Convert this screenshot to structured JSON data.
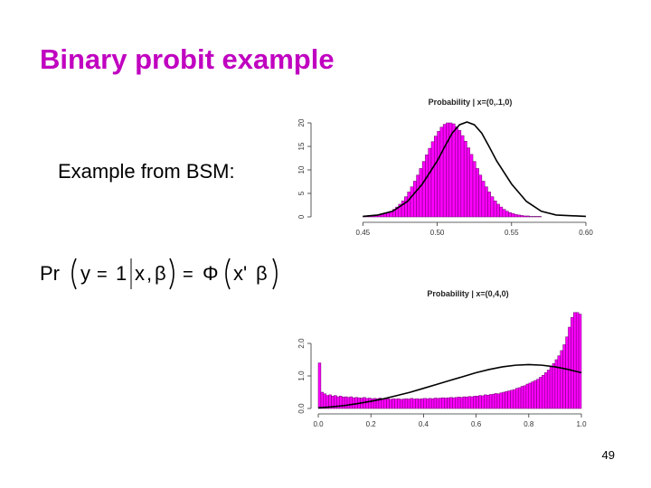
{
  "slide": {
    "title": "Binary probit example",
    "body_text": "Example from BSM:",
    "formula": {
      "pr": "Pr",
      "y": "y",
      "equals": "=",
      "one": "1",
      "x": "x",
      "comma": ",",
      "beta": "β",
      "equals2": "=",
      "Phi": "Φ",
      "x_prime": "x'",
      "beta2": "β"
    },
    "page_number": "49"
  },
  "colors": {
    "title": "#c000c0",
    "bar_fill": "#ff00ff",
    "bar_stroke": "#6a006a",
    "curve": "#000000"
  },
  "chart_data": [
    {
      "type": "bar",
      "title": "Probability | x=(0,.1,0)",
      "xlim": [
        0.42,
        0.6
      ],
      "ylim": [
        0,
        20
      ],
      "x_ticks": [
        "0.45",
        "0.50",
        "0.55",
        "0.60"
      ],
      "x_tick_values": [
        0.45,
        0.5,
        0.55,
        0.6
      ],
      "y_ticks": [
        "0",
        "5",
        "10",
        "15",
        "20"
      ],
      "y_tick_values": [
        0,
        5,
        10,
        15,
        20
      ],
      "bins": {
        "start": 0.45,
        "width": 0.002,
        "values": [
          0.1,
          0.1,
          0.2,
          0.2,
          0.3,
          0.4,
          0.5,
          0.7,
          0.9,
          1.2,
          1.6,
          2.1,
          2.7,
          3.4,
          4.3,
          5.3,
          6.4,
          7.6,
          8.9,
          10.3,
          11.8,
          13.2,
          14.6,
          16.0,
          17.2,
          18.2,
          19.1,
          19.7,
          20.0,
          20.1,
          19.8,
          19.2,
          18.4,
          17.3,
          16.1,
          14.7,
          13.3,
          11.8,
          10.3,
          8.9,
          7.6,
          6.4,
          5.3,
          4.3,
          3.4,
          2.7,
          2.1,
          1.6,
          1.2,
          0.9,
          0.7,
          0.5,
          0.4,
          0.3,
          0.2,
          0.2,
          0.1,
          0.1,
          0.1,
          0.1
        ]
      },
      "curve": {
        "x": [
          0.45,
          0.46,
          0.47,
          0.48,
          0.49,
          0.5,
          0.505,
          0.51,
          0.515,
          0.52,
          0.525,
          0.53,
          0.535,
          0.54,
          0.55,
          0.56,
          0.57,
          0.58,
          0.6
        ],
        "y": [
          0.1,
          0.4,
          1.2,
          3.3,
          7.0,
          11.9,
          14.9,
          17.8,
          19.6,
          20.2,
          19.6,
          17.8,
          14.9,
          11.9,
          7.0,
          3.3,
          1.2,
          0.4,
          0.1
        ]
      }
    },
    {
      "type": "bar",
      "title": "Probability | x=(0,4,0)",
      "xlim": [
        0,
        1
      ],
      "ylim": [
        0,
        3
      ],
      "x_ticks": [
        "0.0",
        "0.2",
        "0.4",
        "0.6",
        "0.8",
        "1.0"
      ],
      "x_tick_values": [
        0,
        0.2,
        0.4,
        0.6,
        0.8,
        1.0
      ],
      "y_ticks": [
        "0.0",
        "1.0",
        "2.0"
      ],
      "y_tick_values": [
        0,
        1,
        2
      ],
      "bins": {
        "start": 0.0,
        "width": 0.01,
        "values": [
          1.4,
          0.5,
          0.45,
          0.4,
          0.42,
          0.38,
          0.4,
          0.36,
          0.38,
          0.35,
          0.36,
          0.34,
          0.36,
          0.33,
          0.34,
          0.33,
          0.32,
          0.34,
          0.31,
          0.32,
          0.3,
          0.31,
          0.3,
          0.32,
          0.29,
          0.3,
          0.3,
          0.28,
          0.3,
          0.29,
          0.3,
          0.28,
          0.29,
          0.3,
          0.29,
          0.31,
          0.29,
          0.3,
          0.29,
          0.3,
          0.31,
          0.3,
          0.31,
          0.3,
          0.32,
          0.31,
          0.32,
          0.33,
          0.32,
          0.33,
          0.34,
          0.33,
          0.34,
          0.35,
          0.34,
          0.36,
          0.35,
          0.37,
          0.36,
          0.38,
          0.38,
          0.4,
          0.39,
          0.42,
          0.41,
          0.43,
          0.44,
          0.46,
          0.45,
          0.48,
          0.5,
          0.52,
          0.54,
          0.56,
          0.58,
          0.62,
          0.64,
          0.68,
          0.7,
          0.75,
          0.78,
          0.82,
          0.86,
          0.9,
          0.96,
          1.02,
          1.1,
          1.18,
          1.28,
          1.38,
          1.5,
          1.62,
          1.78,
          1.96,
          2.2,
          2.5,
          2.8,
          2.95,
          2.95,
          2.9
        ]
      },
      "curve": {
        "x": [
          0.0,
          0.05,
          0.1,
          0.15,
          0.2,
          0.25,
          0.3,
          0.35,
          0.4,
          0.45,
          0.5,
          0.55,
          0.6,
          0.65,
          0.7,
          0.75,
          0.8,
          0.85,
          0.9,
          0.95,
          1.0
        ],
        "y": [
          0.02,
          0.05,
          0.09,
          0.15,
          0.22,
          0.3,
          0.4,
          0.5,
          0.62,
          0.74,
          0.86,
          0.98,
          1.1,
          1.2,
          1.28,
          1.33,
          1.35,
          1.33,
          1.28,
          1.2,
          1.1
        ]
      }
    }
  ]
}
